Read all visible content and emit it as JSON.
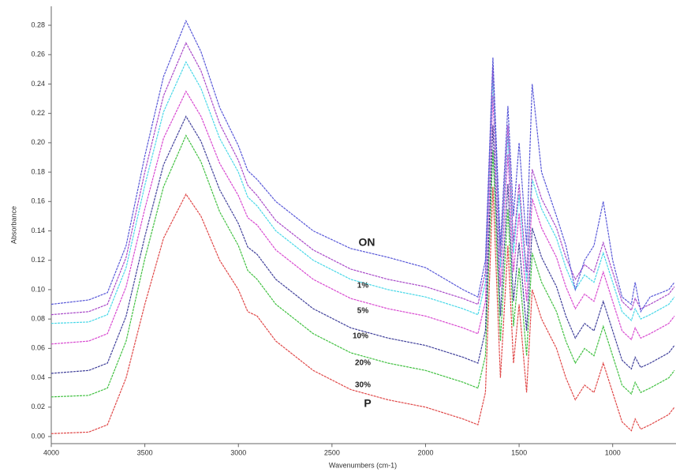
{
  "chart_data": {
    "type": "line",
    "x_label": "Wavenumbers (cm-1)",
    "y_label": "Absorbance",
    "x": [
      4000,
      3800,
      3700,
      3600,
      3500,
      3400,
      3280,
      3200,
      3100,
      3000,
      2950,
      2900,
      2800,
      2600,
      2400,
      2200,
      2000,
      1800,
      1720,
      1680,
      1640,
      1600,
      1560,
      1530,
      1500,
      1460,
      1430,
      1380,
      1300,
      1250,
      1200,
      1150,
      1100,
      1050,
      1000,
      950,
      900,
      880,
      850,
      800,
      700,
      670
    ],
    "series": [
      {
        "color": "#e04848",
        "values": [
          0.002,
          0.003,
          0.008,
          0.04,
          0.09,
          0.135,
          0.165,
          0.15,
          0.12,
          0.1,
          0.085,
          0.082,
          0.065,
          0.045,
          0.032,
          0.025,
          0.02,
          0.012,
          0.008,
          0.03,
          0.17,
          0.04,
          0.13,
          0.05,
          0.09,
          0.03,
          0.1,
          0.08,
          0.06,
          0.04,
          0.025,
          0.035,
          0.03,
          0.05,
          0.03,
          0.01,
          0.004,
          0.012,
          0.005,
          0.008,
          0.015,
          0.02
        ]
      },
      {
        "color": "#40c040",
        "values": [
          0.027,
          0.028,
          0.033,
          0.065,
          0.121,
          0.17,
          0.205,
          0.187,
          0.153,
          0.13,
          0.113,
          0.107,
          0.09,
          0.07,
          0.057,
          0.05,
          0.045,
          0.037,
          0.033,
          0.055,
          0.195,
          0.065,
          0.155,
          0.075,
          0.115,
          0.055,
          0.125,
          0.105,
          0.085,
          0.065,
          0.05,
          0.06,
          0.055,
          0.075,
          0.055,
          0.035,
          0.029,
          0.037,
          0.03,
          0.033,
          0.04,
          0.045
        ]
      },
      {
        "color": "#40409a",
        "values": [
          0.043,
          0.045,
          0.05,
          0.082,
          0.136,
          0.185,
          0.218,
          0.201,
          0.168,
          0.145,
          0.129,
          0.124,
          0.107,
          0.087,
          0.074,
          0.067,
          0.062,
          0.054,
          0.05,
          0.072,
          0.212,
          0.082,
          0.172,
          0.092,
          0.132,
          0.072,
          0.142,
          0.122,
          0.102,
          0.082,
          0.067,
          0.077,
          0.072,
          0.092,
          0.072,
          0.052,
          0.046,
          0.054,
          0.047,
          0.05,
          0.057,
          0.062
        ]
      },
      {
        "color": "#d848d0",
        "values": [
          0.063,
          0.065,
          0.07,
          0.102,
          0.155,
          0.203,
          0.235,
          0.218,
          0.186,
          0.164,
          0.149,
          0.144,
          0.127,
          0.107,
          0.094,
          0.087,
          0.082,
          0.074,
          0.07,
          0.092,
          0.232,
          0.102,
          0.192,
          0.112,
          0.152,
          0.092,
          0.162,
          0.142,
          0.122,
          0.102,
          0.087,
          0.097,
          0.092,
          0.112,
          0.092,
          0.072,
          0.066,
          0.074,
          0.067,
          0.07,
          0.077,
          0.082
        ]
      },
      {
        "color": "#48d8e8",
        "values": [
          0.077,
          0.078,
          0.083,
          0.115,
          0.171,
          0.221,
          0.255,
          0.237,
          0.203,
          0.18,
          0.163,
          0.157,
          0.14,
          0.12,
          0.107,
          0.1,
          0.095,
          0.087,
          0.083,
          0.105,
          0.245,
          0.115,
          0.205,
          0.125,
          0.165,
          0.105,
          0.175,
          0.155,
          0.135,
          0.115,
          0.1,
          0.11,
          0.105,
          0.125,
          0.105,
          0.085,
          0.079,
          0.087,
          0.08,
          0.083,
          0.09,
          0.095
        ]
      },
      {
        "color": "#a848c8",
        "values": [
          0.083,
          0.085,
          0.09,
          0.122,
          0.18,
          0.232,
          0.268,
          0.249,
          0.213,
          0.188,
          0.171,
          0.164,
          0.147,
          0.127,
          0.114,
          0.107,
          0.102,
          0.094,
          0.09,
          0.112,
          0.252,
          0.122,
          0.212,
          0.132,
          0.172,
          0.112,
          0.182,
          0.162,
          0.142,
          0.122,
          0.107,
          0.117,
          0.112,
          0.132,
          0.112,
          0.092,
          0.086,
          0.094,
          0.087,
          0.09,
          0.097,
          0.102
        ]
      },
      {
        "color": "#5858d8",
        "values": [
          0.09,
          0.093,
          0.098,
          0.13,
          0.191,
          0.245,
          0.283,
          0.262,
          0.224,
          0.198,
          0.181,
          0.175,
          0.16,
          0.14,
          0.128,
          0.122,
          0.115,
          0.1,
          0.095,
          0.12,
          0.258,
          0.13,
          0.225,
          0.15,
          0.2,
          0.13,
          0.24,
          0.18,
          0.15,
          0.13,
          0.1,
          0.12,
          0.13,
          0.16,
          0.12,
          0.095,
          0.09,
          0.105,
          0.085,
          0.095,
          0.1,
          0.105
        ]
      }
    ],
    "annotations": [
      "ON",
      "1%",
      "5%",
      "10%",
      "20%",
      "30%",
      "P"
    ],
    "xlim": [
      4000,
      670
    ],
    "xticks": [
      4000,
      3500,
      3000,
      2500,
      2000,
      1500,
      1000
    ],
    "ylim": [
      -0.005,
      0.29
    ],
    "yticks": [
      {
        "value": 0,
        "label": "0.00"
      },
      {
        "value": 0.02,
        "label": "0.02"
      },
      {
        "value": 0.04,
        "label": "0.04"
      },
      {
        "value": 0.06,
        "label": "0.06"
      },
      {
        "value": 0.08,
        "label": "0.08"
      },
      {
        "value": 0.1,
        "label": "0.10"
      },
      {
        "value": 0.12,
        "label": "0.12"
      },
      {
        "value": 0.14,
        "label": "0.14"
      },
      {
        "value": 0.16,
        "label": "0.16"
      },
      {
        "value": 0.18,
        "label": "0.18"
      },
      {
        "value": 0.2,
        "label": "0.20"
      },
      {
        "value": 0.22,
        "label": "0.22"
      },
      {
        "value": 0.24,
        "label": "0.24"
      },
      {
        "value": 0.26,
        "label": "0.26"
      },
      {
        "value": 0.28,
        "label": "0.28"
      }
    ]
  }
}
